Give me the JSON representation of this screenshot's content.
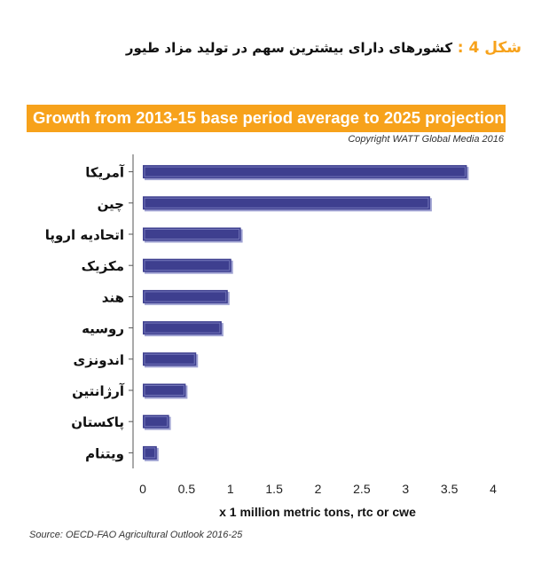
{
  "figure_number": "شکل 4 :",
  "figure_title": "کشورهای دارای بیشترین سهم در تولید مزاد طیور",
  "copyright": "Copyright WATT Global Media 2016",
  "source": "Source: OECD-FAO Agricultural Outlook 2016-25",
  "colors": {
    "banner": "#f7a21b",
    "bar_fill": "#3e3f8f",
    "bar_shadow": "#9fa2d2"
  },
  "chart_data": {
    "type": "bar",
    "orientation": "horizontal",
    "title": "Growth from 2013-15 base period average to 2025 projection",
    "xlabel": "x 1 million metric tons, rtc or cwe",
    "ylabel": "",
    "categories": [
      "آمریکا",
      "چین",
      "اتحادیه اروپا",
      "مکزیک",
      "هند",
      "روسیه",
      "اندونزی",
      "آرژانتین",
      "پاکستان",
      "ویتنام"
    ],
    "values": [
      3.7,
      3.28,
      1.12,
      1.01,
      0.97,
      0.9,
      0.61,
      0.49,
      0.3,
      0.16
    ],
    "xlim": [
      0,
      4
    ],
    "xticks": [
      "0",
      "0.5",
      "1",
      "1.5",
      "2",
      "2.5",
      "3",
      "3.5",
      "4"
    ],
    "grid": false,
    "legend": "none"
  }
}
